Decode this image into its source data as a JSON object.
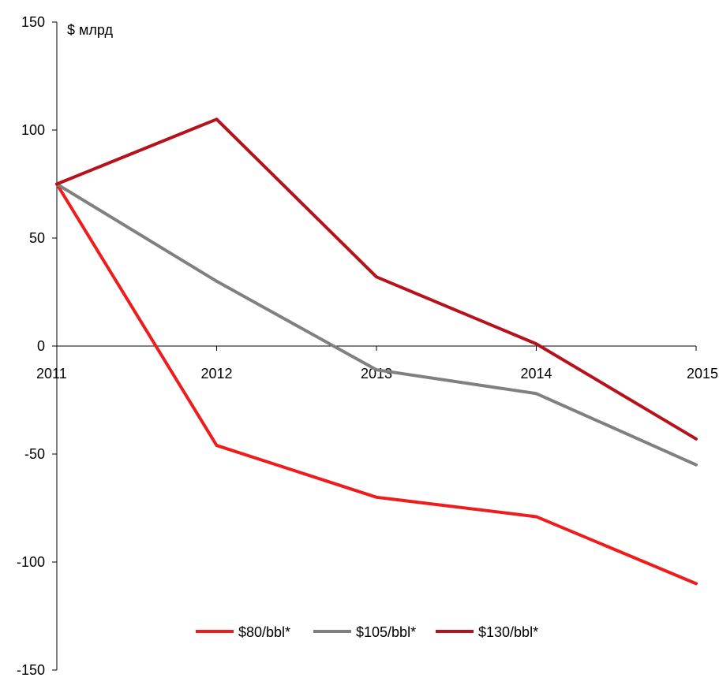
{
  "chart_data": {
    "type": "line",
    "title": "",
    "xlabel": "",
    "ylabel": "$ млрд",
    "x": [
      "2011",
      "2012",
      "2013",
      "2014",
      "2015"
    ],
    "ylim": [
      -150,
      150
    ],
    "yticks": [
      150,
      100,
      50,
      0,
      -50,
      -100,
      -150
    ],
    "grid": false,
    "legend_position": "bottom-center",
    "series": [
      {
        "name": "$80/bbl*",
        "color": "#ee1c1c",
        "values": [
          75,
          -46,
          -70,
          -79,
          -110
        ]
      },
      {
        "name": "$105/bbl*",
        "color": "#808080",
        "values": [
          75,
          30,
          -11,
          -22,
          -55
        ]
      },
      {
        "name": "$130/bbl*",
        "color": "#b5121b",
        "values": [
          75,
          105,
          32,
          1,
          -43
        ]
      }
    ]
  }
}
